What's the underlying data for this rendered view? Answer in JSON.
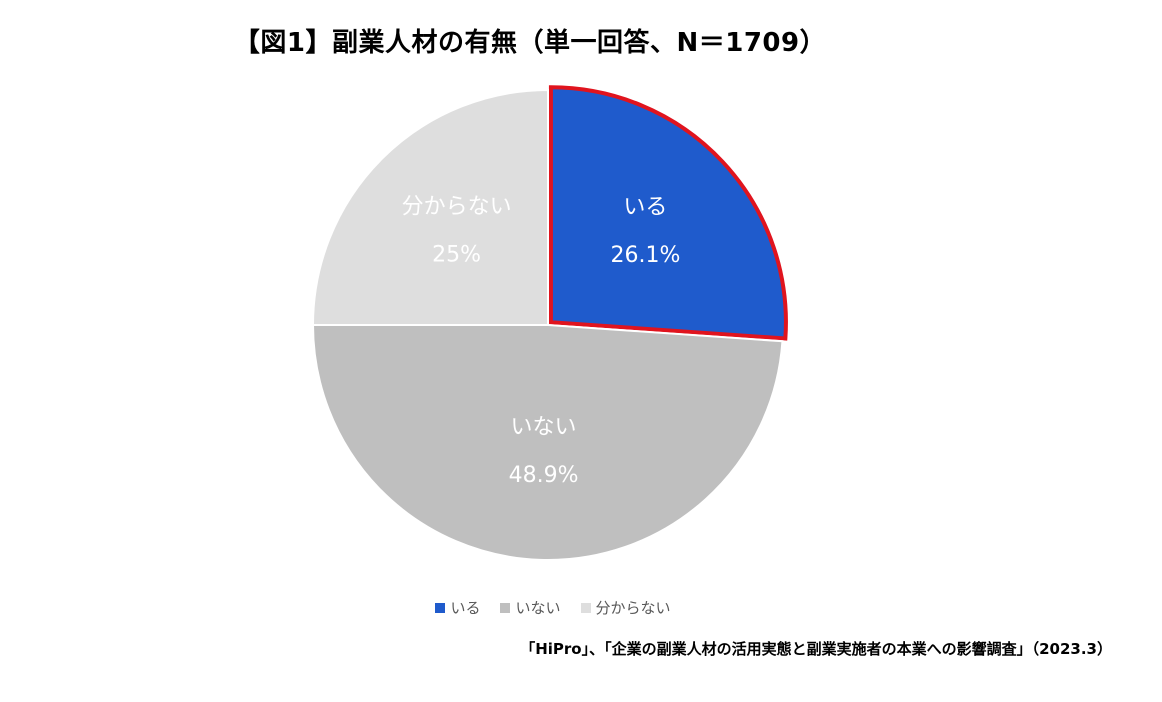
{
  "chart_data": {
    "type": "pie",
    "title": "【図1】副業人材の有無（単一回答、N＝1709）",
    "slices": [
      {
        "label": "いる",
        "value": 26.1,
        "display": "26.1%",
        "color": "#1f5bcc",
        "highlight": true,
        "highlight_color": "#e0141e",
        "label_color": "#ffffff"
      },
      {
        "label": "いない",
        "value": 48.9,
        "display": "48.9%",
        "color": "#bfbfbf",
        "highlight": false,
        "label_color": "#ffffff"
      },
      {
        "label": "分からない",
        "value": 25,
        "display": "25%",
        "color": "#dedede",
        "highlight": false,
        "label_color": "#ffffff"
      }
    ],
    "legend_position": "bottom"
  },
  "source": "「HiPro」、「企業の副業人材の活用実態と副業実施者の本業への影響調査」（2023.3）"
}
